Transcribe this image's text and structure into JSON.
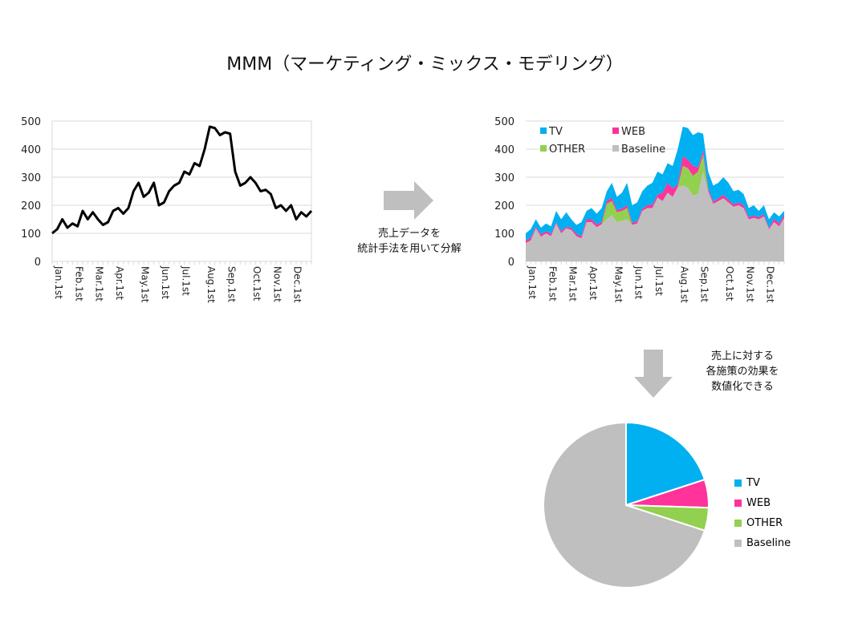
{
  "title": "MMM（マーケティング・ミックス・モデリング）",
  "arrow1_text": [
    "売上データを",
    "統計手法を用いて分解"
  ],
  "arrow2_text": [
    "売上に対する",
    "各施策の効果を",
    "数値化できる"
  ],
  "colors": {
    "TV": "#00b0f0",
    "WEB": "#ff3399",
    "OTHER": "#92d050",
    "Baseline": "#bfbfbf",
    "line": "#000000"
  },
  "chart_data": [
    {
      "type": "line",
      "title": "",
      "ylim": [
        0,
        500
      ],
      "yticks": [
        "0",
        "100",
        "200",
        "300",
        "400",
        "500"
      ],
      "x_labels": [
        "Jan.1st",
        "Feb.1st",
        "Mar.1st",
        "Apr.1st",
        "May.1st",
        "Jun.1st",
        "Jul.1st",
        "Aug.1st",
        "Sep.1st",
        "Oct.1st",
        "Nov.1st",
        "Dec.1st"
      ],
      "x_label_indices": [
        0,
        4,
        8,
        12,
        17,
        21,
        25,
        30,
        34,
        39,
        43,
        47
      ],
      "values": [
        100,
        115,
        150,
        120,
        135,
        125,
        180,
        150,
        175,
        150,
        130,
        140,
        180,
        190,
        170,
        190,
        250,
        280,
        230,
        245,
        280,
        200,
        210,
        250,
        270,
        280,
        320,
        310,
        350,
        340,
        400,
        480,
        475,
        450,
        460,
        455,
        320,
        270,
        280,
        300,
        280,
        250,
        255,
        240,
        190,
        200,
        180,
        200,
        150,
        175,
        160,
        180
      ],
      "grid": true
    },
    {
      "type": "area",
      "stacked": true,
      "ylim": [
        0,
        500
      ],
      "yticks": [
        "0",
        "100",
        "200",
        "300",
        "400",
        "500"
      ],
      "x_labels": [
        "Jan.1st",
        "Feb.1st",
        "Mar.1st",
        "Apr.1st",
        "May.1st",
        "Jun.1st",
        "Jul.1st",
        "Aug.1st",
        "Sep.1st",
        "Oct.1st",
        "Nov.1st",
        "Dec.1st"
      ],
      "x_label_indices": [
        0,
        4,
        8,
        12,
        17,
        21,
        25,
        30,
        34,
        39,
        43,
        47
      ],
      "legend": [
        "TV",
        "WEB",
        "OTHER",
        "Baseline"
      ],
      "legend_position": "top-left",
      "series": [
        {
          "name": "Baseline",
          "values": [
            65,
            75,
            118,
            88,
            100,
            90,
            135,
            100,
            118,
            112,
            90,
            82,
            140,
            140,
            122,
            132,
            150,
            165,
            140,
            145,
            150,
            130,
            135,
            180,
            190,
            190,
            228,
            215,
            245,
            230,
            265,
            270,
            262,
            235,
            240,
            320,
            250,
            205,
            215,
            225,
            210,
            195,
            200,
            190,
            150,
            155,
            150,
            160,
            115,
            140,
            125,
            155
          ]
        },
        {
          "name": "OTHER",
          "values": [
            0,
            0,
            0,
            0,
            0,
            0,
            0,
            0,
            0,
            0,
            0,
            0,
            0,
            0,
            0,
            0,
            55,
            50,
            35,
            35,
            40,
            0,
            0,
            0,
            0,
            0,
            0,
            0,
            0,
            0,
            0,
            70,
            70,
            70,
            80,
            60,
            0,
            0,
            0,
            0,
            0,
            0,
            0,
            0,
            0,
            0,
            0,
            0,
            0,
            0,
            0,
            0
          ]
        },
        {
          "name": "WEB",
          "values": [
            10,
            10,
            5,
            8,
            8,
            8,
            5,
            8,
            5,
            8,
            8,
            8,
            10,
            10,
            10,
            8,
            10,
            12,
            8,
            8,
            10,
            8,
            8,
            8,
            10,
            12,
            10,
            30,
            35,
            30,
            10,
            35,
            30,
            35,
            15,
            15,
            10,
            8,
            10,
            12,
            10,
            8,
            10,
            10,
            8,
            8,
            8,
            8,
            5,
            12,
            10,
            10
          ]
        },
        {
          "name": "TV",
          "values": [
            25,
            30,
            27,
            24,
            27,
            27,
            40,
            42,
            52,
            30,
            32,
            50,
            30,
            40,
            38,
            50,
            35,
            53,
            47,
            57,
            80,
            62,
            67,
            62,
            70,
            78,
            82,
            65,
            70,
            80,
            125,
            105,
            113,
            110,
            125,
            60,
            60,
            57,
            55,
            63,
            60,
            47,
            45,
            40,
            32,
            37,
            22,
            32,
            30,
            23,
            25,
            15
          ]
        }
      ]
    },
    {
      "type": "pie",
      "start": "12 o'clock, clockwise",
      "labels": [
        "TV",
        "WEB",
        "OTHER",
        "Baseline"
      ],
      "values": [
        20,
        5.5,
        4.5,
        70
      ],
      "legend_position": "right"
    }
  ]
}
